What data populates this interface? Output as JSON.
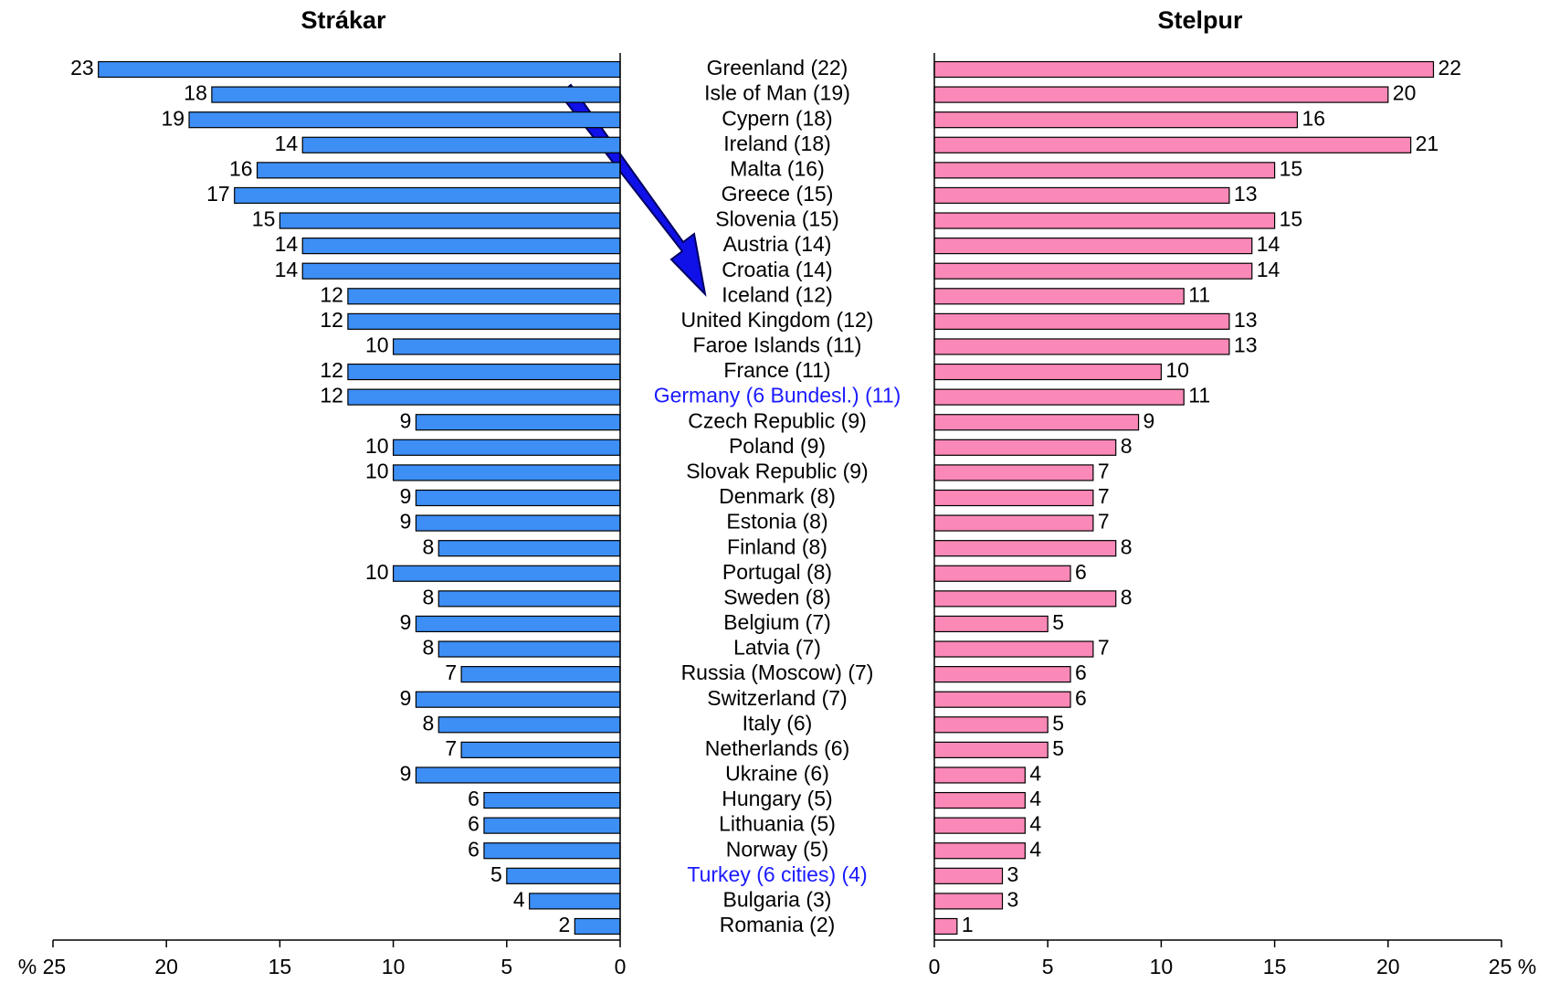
{
  "chart_data": {
    "type": "butterfly_bar",
    "categories": [
      "Greenland (22)",
      "Isle of Man (19)",
      "Cypern (18)",
      "Ireland (18)",
      "Malta (16)",
      "Greece (15)",
      "Slovenia (15)",
      "Austria (14)",
      "Croatia (14)",
      "Iceland (12)",
      "United Kingdom (12)",
      "Faroe Islands (11)",
      "France (11)",
      "Germany (6 Bundesl.) (11)",
      "Czech Republic (9)",
      "Poland (9)",
      "Slovak Republic (9)",
      "Denmark (8)",
      "Estonia (8)",
      "Finland (8)",
      "Portugal (8)",
      "Sweden (8)",
      "Belgium (7)",
      "Latvia (7)",
      "Russia (Moscow) (7)",
      "Switzerland (7)",
      "Italy (6)",
      "Netherlands (6)",
      "Ukraine (6)",
      "Hungary (5)",
      "Lithuania (5)",
      "Norway (5)",
      "Turkey (6 cities) (4)",
      "Bulgaria (3)",
      "Romania (2)"
    ],
    "category_colors": [
      "#000000",
      "#000000",
      "#000000",
      "#000000",
      "#000000",
      "#000000",
      "#000000",
      "#000000",
      "#000000",
      "#000000",
      "#000000",
      "#000000",
      "#000000",
      "#1a1aff",
      "#000000",
      "#000000",
      "#000000",
      "#000000",
      "#000000",
      "#000000",
      "#000000",
      "#000000",
      "#000000",
      "#000000",
      "#000000",
      "#000000",
      "#000000",
      "#000000",
      "#000000",
      "#000000",
      "#000000",
      "#000000",
      "#1a1aff",
      "#000000",
      "#000000"
    ],
    "series": [
      {
        "name": "Strákar",
        "color": "#3d8ef5",
        "values": [
          23,
          18,
          19,
          14,
          16,
          17,
          15,
          14,
          14,
          12,
          12,
          10,
          12,
          12,
          9,
          10,
          10,
          9,
          9,
          8,
          10,
          8,
          9,
          8,
          7,
          9,
          8,
          7,
          9,
          6,
          6,
          6,
          5,
          4,
          2
        ]
      },
      {
        "name": "Stelpur",
        "color": "#fb89b8",
        "values": [
          22,
          20,
          16,
          21,
          15,
          13,
          15,
          14,
          14,
          11,
          13,
          13,
          10,
          11,
          9,
          8,
          7,
          7,
          7,
          8,
          6,
          8,
          5,
          7,
          6,
          6,
          5,
          5,
          4,
          4,
          4,
          4,
          3,
          3,
          1
        ]
      }
    ],
    "xlim": [
      0,
      25
    ],
    "xticks_left": [
      0,
      5,
      10,
      15,
      20,
      {
        "value": 25,
        "label": "% 25"
      }
    ],
    "xticks_right": [
      0,
      5,
      10,
      15,
      20,
      {
        "value": 25,
        "label": "25 %"
      }
    ]
  }
}
